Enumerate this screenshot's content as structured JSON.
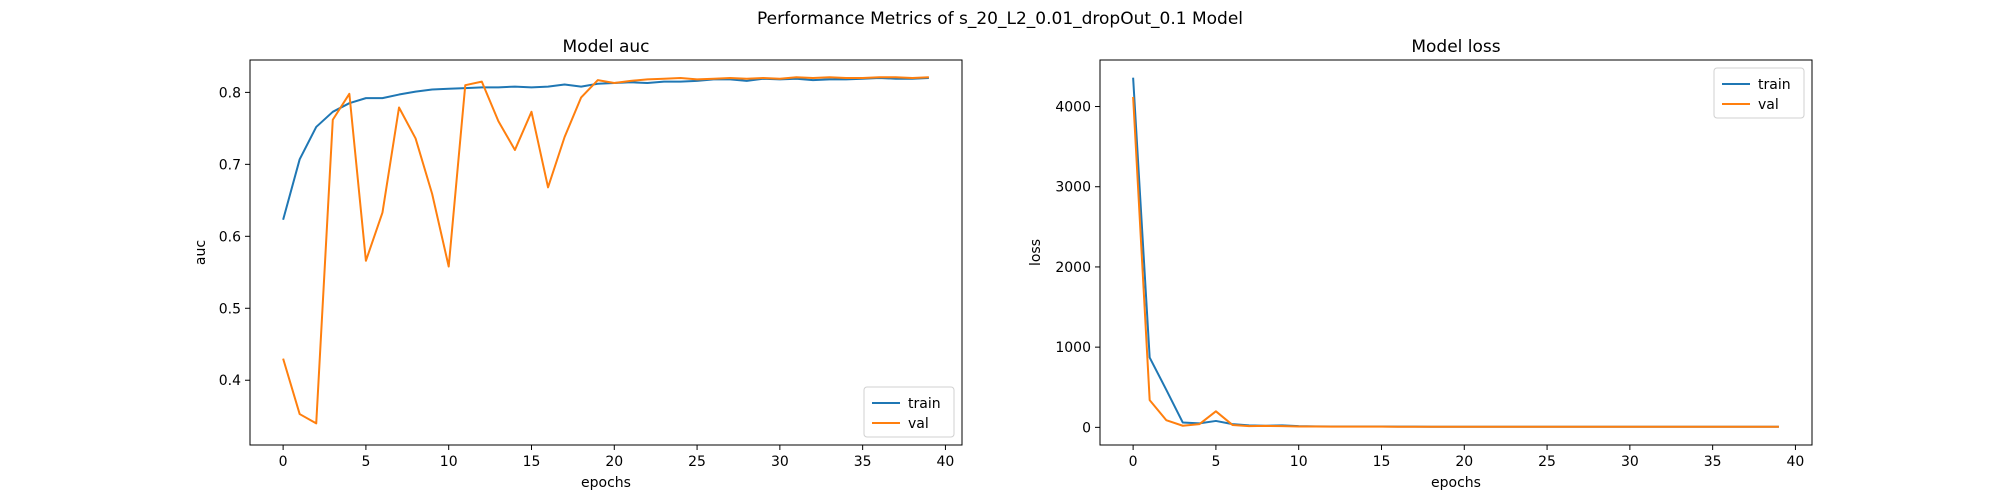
{
  "figure": {
    "suptitle": "Performance Metrics of s_20_L2_0.01_dropOut_0.1 Model"
  },
  "colors": {
    "train": "#1f77b4",
    "val": "#ff7f0e"
  },
  "chart_data": [
    {
      "type": "line",
      "title": "Model auc",
      "xlabel": "epochs",
      "ylabel": "auc",
      "xlim": [
        -2,
        41
      ],
      "ylim": [
        0.31,
        0.845
      ],
      "xticks": [
        0,
        5,
        10,
        15,
        20,
        25,
        30,
        35,
        40
      ],
      "yticks": [
        0.4,
        0.5,
        0.6,
        0.7,
        0.8
      ],
      "grid": false,
      "legend_loc": "lower right",
      "x": [
        0,
        1,
        2,
        3,
        4,
        5,
        6,
        7,
        8,
        9,
        10,
        11,
        12,
        13,
        14,
        15,
        16,
        17,
        18,
        19,
        20,
        21,
        22,
        23,
        24,
        25,
        26,
        27,
        28,
        29,
        30,
        31,
        32,
        33,
        34,
        35,
        36,
        37,
        38,
        39
      ],
      "series": [
        {
          "name": "train",
          "values": [
            0.623,
            0.707,
            0.752,
            0.773,
            0.785,
            0.792,
            0.792,
            0.797,
            0.801,
            0.804,
            0.805,
            0.806,
            0.807,
            0.807,
            0.808,
            0.807,
            0.808,
            0.811,
            0.808,
            0.812,
            0.813,
            0.814,
            0.813,
            0.815,
            0.815,
            0.816,
            0.818,
            0.818,
            0.816,
            0.819,
            0.818,
            0.819,
            0.817,
            0.818,
            0.818,
            0.819,
            0.82,
            0.819,
            0.819,
            0.82
          ]
        },
        {
          "name": "val",
          "values": [
            0.43,
            0.353,
            0.34,
            0.762,
            0.798,
            0.566,
            0.633,
            0.779,
            0.736,
            0.659,
            0.558,
            0.81,
            0.815,
            0.76,
            0.72,
            0.773,
            0.668,
            0.738,
            0.793,
            0.817,
            0.813,
            0.816,
            0.818,
            0.819,
            0.82,
            0.818,
            0.819,
            0.82,
            0.819,
            0.82,
            0.819,
            0.821,
            0.82,
            0.821,
            0.82,
            0.82,
            0.821,
            0.821,
            0.82,
            0.821
          ]
        }
      ]
    },
    {
      "type": "line",
      "title": "Model loss",
      "xlabel": "epochs",
      "ylabel": "loss",
      "xlim": [
        -2,
        41
      ],
      "ylim": [
        -220,
        4580
      ],
      "xticks": [
        0,
        5,
        10,
        15,
        20,
        25,
        30,
        35,
        40
      ],
      "yticks": [
        0,
        1000,
        2000,
        3000,
        4000
      ],
      "grid": false,
      "legend_loc": "upper right",
      "x": [
        0,
        1,
        2,
        3,
        4,
        5,
        6,
        7,
        8,
        9,
        10,
        11,
        12,
        13,
        14,
        15,
        16,
        17,
        18,
        19,
        20,
        21,
        22,
        23,
        24,
        25,
        26,
        27,
        28,
        29,
        30,
        31,
        32,
        33,
        34,
        35,
        36,
        37,
        38,
        39
      ],
      "series": [
        {
          "name": "train",
          "values": [
            4360,
            870,
            470,
            60,
            50,
            80,
            40,
            25,
            20,
            25,
            15,
            12,
            10,
            10,
            10,
            10,
            9,
            9,
            8,
            8,
            8,
            8,
            8,
            7,
            7,
            7,
            7,
            7,
            7,
            7,
            7,
            7,
            7,
            7,
            7,
            7,
            7,
            7,
            7,
            7
          ]
        },
        {
          "name": "val",
          "values": [
            4120,
            340,
            90,
            20,
            40,
            200,
            30,
            15,
            18,
            15,
            10,
            10,
            9,
            9,
            9,
            9,
            8,
            8,
            8,
            8,
            8,
            8,
            7,
            7,
            7,
            7,
            7,
            7,
            7,
            7,
            7,
            7,
            7,
            7,
            7,
            7,
            7,
            7,
            7,
            7
          ]
        }
      ]
    }
  ]
}
